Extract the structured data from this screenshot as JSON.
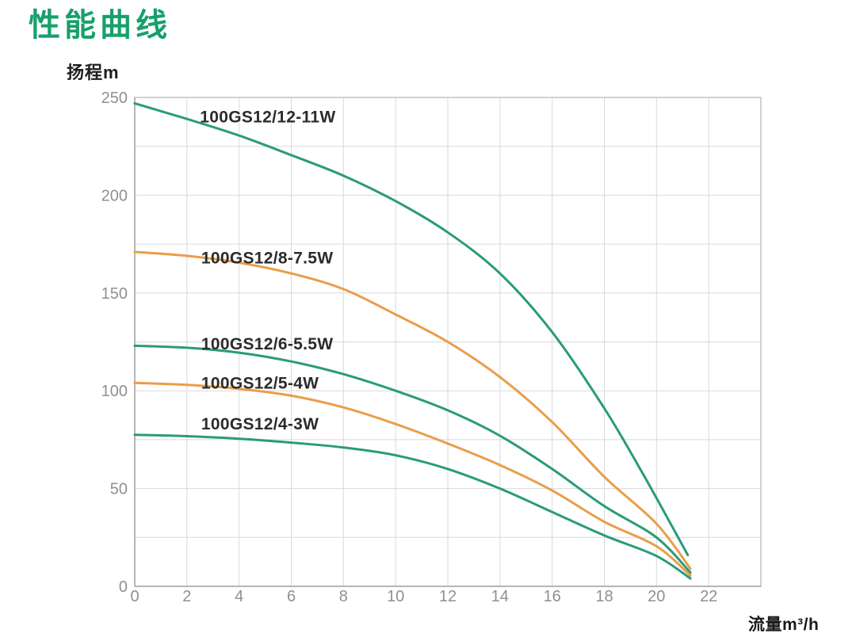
{
  "header": {
    "title": "性能曲线"
  },
  "colors": {
    "accent_green": "#17a06b",
    "curve_green": "#2a9b7a",
    "curve_orange": "#ea9d4a",
    "grid": "#d9d9d9",
    "border": "#c2c2c2",
    "axis": "#a8a8a8",
    "tick_text": "#909090",
    "curve_label_text": "#2b2b2b"
  },
  "chart_data": {
    "type": "line",
    "title": "性能曲线",
    "xlabel": "流量m³/h",
    "ylabel": "扬程m",
    "xlim": [
      0,
      24
    ],
    "ylim": [
      0,
      250
    ],
    "x_ticks": [
      0,
      2,
      4,
      6,
      8,
      10,
      12,
      14,
      16,
      18,
      20,
      22
    ],
    "y_ticks": [
      0,
      50,
      100,
      150,
      200,
      250
    ],
    "x_grid_step": 2,
    "y_grid_step": 25,
    "grid": true,
    "legend_position": "inline-labels",
    "series": [
      {
        "name": "100GS12/12-11W",
        "color": "#2a9b7a",
        "label_pos": [
          2.5,
          240
        ],
        "points": [
          [
            0,
            247
          ],
          [
            2,
            239
          ],
          [
            4,
            230.5
          ],
          [
            6,
            220.5
          ],
          [
            8,
            210
          ],
          [
            10,
            197
          ],
          [
            12,
            181
          ],
          [
            14,
            160
          ],
          [
            16,
            130
          ],
          [
            18,
            91
          ],
          [
            19.5,
            57
          ],
          [
            21.2,
            16
          ]
        ]
      },
      {
        "name": "100GS12/8-7.5W",
        "color": "#ea9d4a",
        "label_pos": [
          2.55,
          168
        ],
        "points": [
          [
            0,
            171
          ],
          [
            2,
            169
          ],
          [
            4,
            165.5
          ],
          [
            6,
            160
          ],
          [
            8,
            152
          ],
          [
            10,
            139
          ],
          [
            12,
            125
          ],
          [
            14,
            107
          ],
          [
            16,
            84
          ],
          [
            18,
            56
          ],
          [
            20,
            32
          ],
          [
            21.3,
            9
          ]
        ]
      },
      {
        "name": "100GS12/6-5.5W",
        "color": "#2a9b7a",
        "label_pos": [
          2.55,
          124
        ],
        "points": [
          [
            0,
            123
          ],
          [
            2,
            122
          ],
          [
            4,
            119.5
          ],
          [
            6,
            115
          ],
          [
            8,
            108.5
          ],
          [
            10,
            100
          ],
          [
            12,
            90
          ],
          [
            14,
            77
          ],
          [
            16,
            60
          ],
          [
            18,
            41
          ],
          [
            20,
            25
          ],
          [
            21.3,
            7
          ]
        ]
      },
      {
        "name": "100GS12/5-4W",
        "color": "#ea9d4a",
        "label_pos": [
          2.55,
          104
        ],
        "points": [
          [
            0,
            104
          ],
          [
            2,
            103
          ],
          [
            4,
            101
          ],
          [
            6,
            97.5
          ],
          [
            8,
            91.5
          ],
          [
            10,
            83
          ],
          [
            12,
            73
          ],
          [
            14,
            62
          ],
          [
            16,
            49
          ],
          [
            18,
            33
          ],
          [
            20,
            20.5
          ],
          [
            21.3,
            5.5
          ]
        ]
      },
      {
        "name": "100GS12/4-3W",
        "color": "#2a9b7a",
        "label_pos": [
          2.55,
          83
        ],
        "points": [
          [
            0,
            77.5
          ],
          [
            2,
            76.8
          ],
          [
            4,
            75.5
          ],
          [
            6,
            73.5
          ],
          [
            8,
            71
          ],
          [
            10,
            67
          ],
          [
            12,
            60
          ],
          [
            14,
            50
          ],
          [
            16,
            38
          ],
          [
            18,
            26
          ],
          [
            20,
            15.5
          ],
          [
            21.3,
            4
          ]
        ]
      }
    ]
  }
}
